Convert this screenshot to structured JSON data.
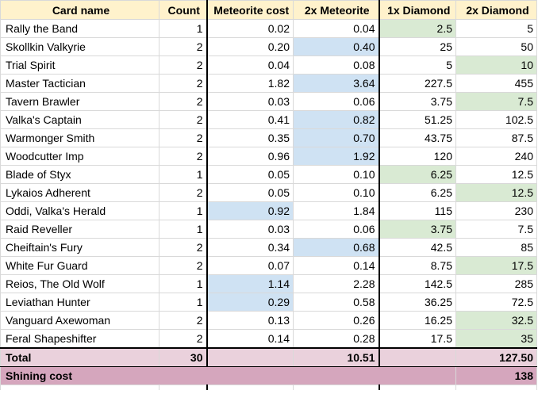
{
  "headers": [
    "Card name",
    "Count",
    "Meteorite cost",
    "2x Meteorite",
    "1x Diamond",
    "2x Diamond"
  ],
  "rows": [
    {
      "name": "Rally the Band",
      "count": "1",
      "met": "0.02",
      "met2": "0.04",
      "dia": "2.5",
      "dia2": "5",
      "hl": "dia"
    },
    {
      "name": "Skollkin Valkyrie",
      "count": "2",
      "met": "0.20",
      "met2": "0.40",
      "dia": "25",
      "dia2": "50",
      "hl": "met2"
    },
    {
      "name": "Trial Spirit",
      "count": "2",
      "met": "0.04",
      "met2": "0.08",
      "dia": "5",
      "dia2": "10",
      "hl": "dia2"
    },
    {
      "name": "Master Tactician",
      "count": "2",
      "met": "1.82",
      "met2": "3.64",
      "dia": "227.5",
      "dia2": "455",
      "hl": "met2"
    },
    {
      "name": "Tavern Brawler",
      "count": "2",
      "met": "0.03",
      "met2": "0.06",
      "dia": "3.75",
      "dia2": "7.5",
      "hl": "dia2"
    },
    {
      "name": "Valka's Captain",
      "count": "2",
      "met": "0.41",
      "met2": "0.82",
      "dia": "51.25",
      "dia2": "102.5",
      "hl": "met2"
    },
    {
      "name": "Warmonger Smith",
      "count": "2",
      "met": "0.35",
      "met2": "0.70",
      "dia": "43.75",
      "dia2": "87.5",
      "hl": "met2"
    },
    {
      "name": "Woodcutter Imp",
      "count": "2",
      "met": "0.96",
      "met2": "1.92",
      "dia": "120",
      "dia2": "240",
      "hl": "met2"
    },
    {
      "name": "Blade of Styx",
      "count": "1",
      "met": "0.05",
      "met2": "0.10",
      "dia": "6.25",
      "dia2": "12.5",
      "hl": "dia"
    },
    {
      "name": "Lykaios Adherent",
      "count": "2",
      "met": "0.05",
      "met2": "0.10",
      "dia": "6.25",
      "dia2": "12.5",
      "hl": "dia2"
    },
    {
      "name": "Oddi, Valka's Herald",
      "count": "1",
      "met": "0.92",
      "met2": "1.84",
      "dia": "115",
      "dia2": "230",
      "hl": "met"
    },
    {
      "name": "Raid Reveller",
      "count": "1",
      "met": "0.03",
      "met2": "0.06",
      "dia": "3.75",
      "dia2": "7.5",
      "hl": "dia"
    },
    {
      "name": "Cheiftain's Fury",
      "count": "2",
      "met": "0.34",
      "met2": "0.68",
      "dia": "42.5",
      "dia2": "85",
      "hl": "met2"
    },
    {
      "name": "White Fur Guard",
      "count": "2",
      "met": "0.07",
      "met2": "0.14",
      "dia": "8.75",
      "dia2": "17.5",
      "hl": "dia2"
    },
    {
      "name": "Reios, The Old Wolf",
      "count": "1",
      "met": "1.14",
      "met2": "2.28",
      "dia": "142.5",
      "dia2": "285",
      "hl": "met"
    },
    {
      "name": "Leviathan Hunter",
      "count": "1",
      "met": "0.29",
      "met2": "0.58",
      "dia": "36.25",
      "dia2": "72.5",
      "hl": "met"
    },
    {
      "name": "Vanguard Axewoman",
      "count": "2",
      "met": "0.13",
      "met2": "0.26",
      "dia": "16.25",
      "dia2": "32.5",
      "hl": "dia2"
    },
    {
      "name": "Feral Shapeshifter",
      "count": "2",
      "met": "0.14",
      "met2": "0.28",
      "dia": "17.5",
      "dia2": "35",
      "hl": "dia2"
    }
  ],
  "total": {
    "label": "Total",
    "count": "30",
    "met2": "10.51",
    "dia2": "127.50"
  },
  "shining": {
    "label": "Shining cost",
    "value": "138"
  },
  "colors": {
    "header": "#fff2cc",
    "meteorite_highlight": "#cfe2f3",
    "diamond_highlight": "#d9ead3",
    "total_row": "#ead1dc",
    "shining_row": "#d5a6bd"
  }
}
